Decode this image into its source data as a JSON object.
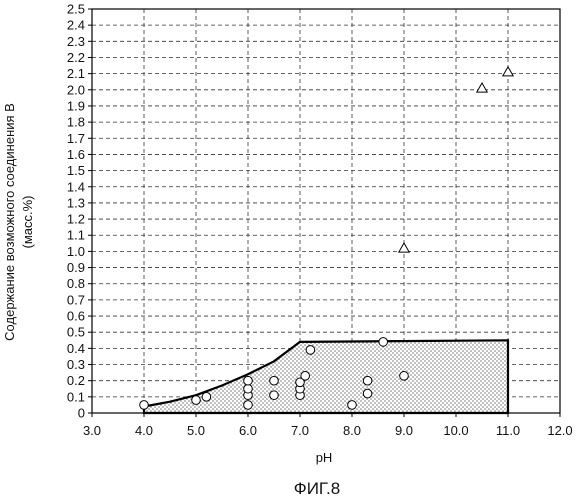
{
  "chart_data": {
    "type": "scatter",
    "xlabel": "pH",
    "ylabel_line1": "Содержание возможного соединения В",
    "ylabel_line2": "(масс.%)",
    "caption": "ФИГ.8",
    "xlim": [
      3.0,
      12.0
    ],
    "ylim": [
      0.0,
      2.5
    ],
    "x_ticks": [
      "3.0",
      "4.0",
      "5.0",
      "6.0",
      "7.0",
      "8.0",
      "9.0",
      "10.0",
      "11.0",
      "12.0"
    ],
    "y_ticks": [
      "0",
      "0.1",
      "0.2",
      "0.3",
      "0.4",
      "0.5",
      "0.6",
      "0.7",
      "0.8",
      "0.9",
      "1.0",
      "1.1",
      "1.2",
      "1.3",
      "1.4",
      "1.5",
      "1.6",
      "1.7",
      "1.8",
      "1.9",
      "2.0",
      "2.1",
      "2.2",
      "2.3",
      "2.4",
      "2.5"
    ],
    "grid": true,
    "shaded_region": {
      "boundary": [
        [
          4.0,
          0.04
        ],
        [
          4.5,
          0.07
        ],
        [
          5.0,
          0.11
        ],
        [
          5.5,
          0.17
        ],
        [
          6.0,
          0.24
        ],
        [
          6.5,
          0.32
        ],
        [
          7.0,
          0.44
        ],
        [
          11.0,
          0.45
        ],
        [
          11.0,
          0.0
        ],
        [
          4.0,
          0.0
        ]
      ]
    },
    "series": [
      {
        "marker": "circle",
        "points": [
          [
            4.0,
            0.05
          ],
          [
            5.0,
            0.08
          ],
          [
            5.2,
            0.1
          ],
          [
            6.0,
            0.05
          ],
          [
            6.0,
            0.11
          ],
          [
            6.0,
            0.15
          ],
          [
            6.0,
            0.2
          ],
          [
            6.5,
            0.11
          ],
          [
            6.5,
            0.2
          ],
          [
            7.0,
            0.11
          ],
          [
            7.0,
            0.15
          ],
          [
            7.0,
            0.19
          ],
          [
            7.1,
            0.23
          ],
          [
            7.2,
            0.39
          ],
          [
            8.0,
            0.05
          ],
          [
            8.3,
            0.12
          ],
          [
            8.3,
            0.2
          ],
          [
            8.6,
            0.44
          ],
          [
            9.0,
            0.23
          ]
        ]
      },
      {
        "marker": "triangle",
        "points": [
          [
            9.0,
            1.02
          ],
          [
            10.5,
            2.01
          ],
          [
            11.0,
            2.11
          ]
        ]
      }
    ]
  }
}
